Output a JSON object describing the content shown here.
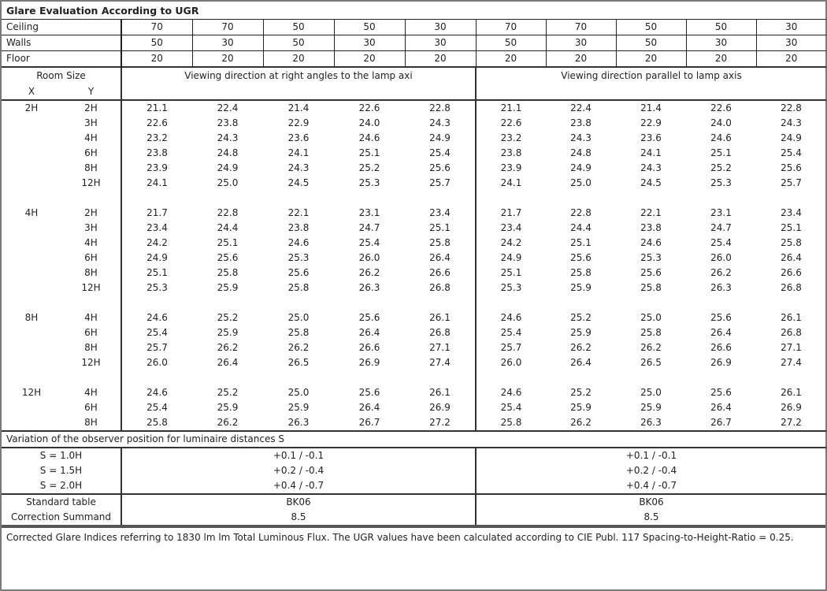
{
  "title": "Glare Evaluation According to UGR",
  "reflectances": [
    {
      "label": "Ceiling",
      "values": [
        "70",
        "70",
        "50",
        "50",
        "30",
        "70",
        "70",
        "50",
        "50",
        "30"
      ]
    },
    {
      "label": "Walls",
      "values": [
        "50",
        "30",
        "50",
        "30",
        "30",
        "50",
        "30",
        "50",
        "30",
        "30"
      ]
    },
    {
      "label": "Floor",
      "values": [
        "20",
        "20",
        "20",
        "20",
        "20",
        "20",
        "20",
        "20",
        "20",
        "20"
      ]
    }
  ],
  "header": {
    "room_size": "Room Size",
    "x": "X",
    "y": "Y",
    "left_direction": "Viewing direction at right angles to the lamp axi",
    "right_direction": "Viewing direction parallel to lamp axis"
  },
  "groups": [
    {
      "x": "2H",
      "rows": [
        {
          "y": "2H",
          "left": [
            "21.1",
            "22.4",
            "21.4",
            "22.6",
            "22.8"
          ],
          "right": [
            "21.1",
            "22.4",
            "21.4",
            "22.6",
            "22.8"
          ]
        },
        {
          "y": "3H",
          "left": [
            "22.6",
            "23.8",
            "22.9",
            "24.0",
            "24.3"
          ],
          "right": [
            "22.6",
            "23.8",
            "22.9",
            "24.0",
            "24.3"
          ]
        },
        {
          "y": "4H",
          "left": [
            "23.2",
            "24.3",
            "23.6",
            "24.6",
            "24.9"
          ],
          "right": [
            "23.2",
            "24.3",
            "23.6",
            "24.6",
            "24.9"
          ]
        },
        {
          "y": "6H",
          "left": [
            "23.8",
            "24.8",
            "24.1",
            "25.1",
            "25.4"
          ],
          "right": [
            "23.8",
            "24.8",
            "24.1",
            "25.1",
            "25.4"
          ]
        },
        {
          "y": "8H",
          "left": [
            "23.9",
            "24.9",
            "24.3",
            "25.2",
            "25.6"
          ],
          "right": [
            "23.9",
            "24.9",
            "24.3",
            "25.2",
            "25.6"
          ]
        },
        {
          "y": "12H",
          "left": [
            "24.1",
            "25.0",
            "24.5",
            "25.3",
            "25.7"
          ],
          "right": [
            "24.1",
            "25.0",
            "24.5",
            "25.3",
            "25.7"
          ]
        }
      ]
    },
    {
      "x": "4H",
      "rows": [
        {
          "y": "2H",
          "left": [
            "21.7",
            "22.8",
            "22.1",
            "23.1",
            "23.4"
          ],
          "right": [
            "21.7",
            "22.8",
            "22.1",
            "23.1",
            "23.4"
          ]
        },
        {
          "y": "3H",
          "left": [
            "23.4",
            "24.4",
            "23.8",
            "24.7",
            "25.1"
          ],
          "right": [
            "23.4",
            "24.4",
            "23.8",
            "24.7",
            "25.1"
          ]
        },
        {
          "y": "4H",
          "left": [
            "24.2",
            "25.1",
            "24.6",
            "25.4",
            "25.8"
          ],
          "right": [
            "24.2",
            "25.1",
            "24.6",
            "25.4",
            "25.8"
          ]
        },
        {
          "y": "6H",
          "left": [
            "24.9",
            "25.6",
            "25.3",
            "26.0",
            "26.4"
          ],
          "right": [
            "24.9",
            "25.6",
            "25.3",
            "26.0",
            "26.4"
          ]
        },
        {
          "y": "8H",
          "left": [
            "25.1",
            "25.8",
            "25.6",
            "26.2",
            "26.6"
          ],
          "right": [
            "25.1",
            "25.8",
            "25.6",
            "26.2",
            "26.6"
          ]
        },
        {
          "y": "12H",
          "left": [
            "25.3",
            "25.9",
            "25.8",
            "26.3",
            "26.8"
          ],
          "right": [
            "25.3",
            "25.9",
            "25.8",
            "26.3",
            "26.8"
          ]
        }
      ]
    },
    {
      "x": "8H",
      "rows": [
        {
          "y": "4H",
          "left": [
            "24.6",
            "25.2",
            "25.0",
            "25.6",
            "26.1"
          ],
          "right": [
            "24.6",
            "25.2",
            "25.0",
            "25.6",
            "26.1"
          ]
        },
        {
          "y": "6H",
          "left": [
            "25.4",
            "25.9",
            "25.8",
            "26.4",
            "26.8"
          ],
          "right": [
            "25.4",
            "25.9",
            "25.8",
            "26.4",
            "26.8"
          ]
        },
        {
          "y": "8H",
          "left": [
            "25.7",
            "26.2",
            "26.2",
            "26.6",
            "27.1"
          ],
          "right": [
            "25.7",
            "26.2",
            "26.2",
            "26.6",
            "27.1"
          ]
        },
        {
          "y": "12H",
          "left": [
            "26.0",
            "26.4",
            "26.5",
            "26.9",
            "27.4"
          ],
          "right": [
            "26.0",
            "26.4",
            "26.5",
            "26.9",
            "27.4"
          ]
        }
      ]
    },
    {
      "x": "12H",
      "rows": [
        {
          "y": "4H",
          "left": [
            "24.6",
            "25.2",
            "25.0",
            "25.6",
            "26.1"
          ],
          "right": [
            "24.6",
            "25.2",
            "25.0",
            "25.6",
            "26.1"
          ]
        },
        {
          "y": "6H",
          "left": [
            "25.4",
            "25.9",
            "25.9",
            "26.4",
            "26.9"
          ],
          "right": [
            "25.4",
            "25.9",
            "25.9",
            "26.4",
            "26.9"
          ]
        },
        {
          "y": "8H",
          "left": [
            "25.8",
            "26.2",
            "26.3",
            "26.7",
            "27.2"
          ],
          "right": [
            "25.8",
            "26.2",
            "26.3",
            "26.7",
            "27.2"
          ]
        }
      ]
    }
  ],
  "variation": {
    "title": "Variation of the observer position for luminaire distances S",
    "rows": [
      {
        "label": "S = 1.0H",
        "left": "+0.1 / -0.1",
        "right": "+0.1 / -0.1"
      },
      {
        "label": "S = 1.5H",
        "left": "+0.2 / -0.4",
        "right": "+0.2 / -0.4"
      },
      {
        "label": "S = 2.0H",
        "left": "+0.4 / -0.7",
        "right": "+0.4 / -0.7"
      }
    ]
  },
  "standard": {
    "label": "Standard table",
    "left": "BK06",
    "right": "BK06"
  },
  "correction": {
    "label": "Correction Summand",
    "left": "8.5",
    "right": "8.5"
  },
  "footer": "Corrected Glare Indices referring to 1830 lm lm Total Luminous Flux. The UGR values have been calculated according to CIE Publ. 117    Spacing-to-Height-Ratio = 0.25."
}
